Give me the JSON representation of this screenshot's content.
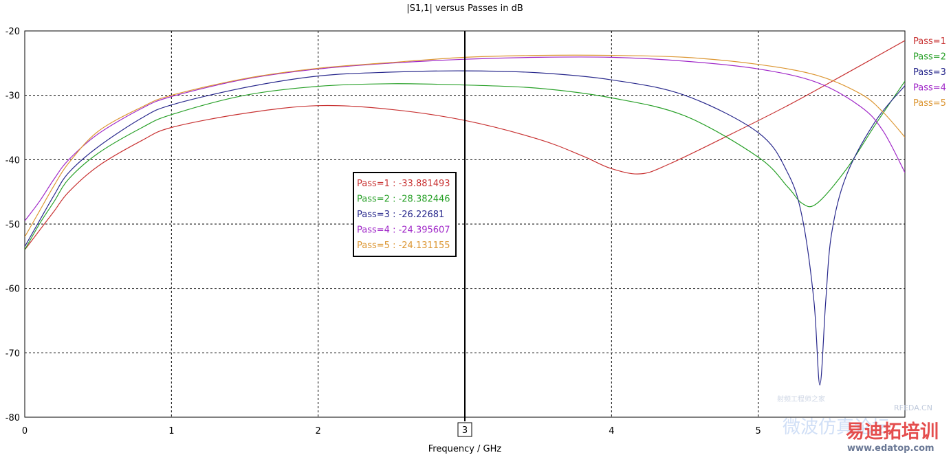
{
  "chart_data": {
    "type": "line",
    "title": "|S1,1| versus Passes in dB",
    "xlabel": "Frequency / GHz",
    "ylabel": "",
    "xlim": [
      0,
      6
    ],
    "ylim": [
      -80,
      -20
    ],
    "x_ticks": [
      "0",
      "1",
      "2",
      "3",
      "4",
      "5"
    ],
    "y_ticks": [
      "-20",
      "-30",
      "-40",
      "-50",
      "-60",
      "-70",
      "-80"
    ],
    "grid": true,
    "legend_position": "right",
    "marker": {
      "x": 3,
      "label": "3"
    },
    "marker_readout": [
      {
        "text": "Pass=1 : -33.881493"
      },
      {
        "text": "Pass=2 : -28.382446"
      },
      {
        "text": "Pass=3 : -26.22681"
      },
      {
        "text": "Pass=4 : -24.395607"
      },
      {
        "text": "Pass=5 : -24.131155"
      }
    ],
    "series": [
      {
        "name": "Pass=1",
        "color": "#c83232",
        "x": [
          0,
          0.1,
          0.2,
          0.3,
          0.5,
          0.8,
          1.0,
          1.5,
          2.0,
          2.5,
          3.0,
          3.5,
          3.8,
          4.0,
          4.2,
          4.4,
          4.8,
          5.2,
          5.6,
          6.0
        ],
        "y": [
          -54,
          -51,
          -48,
          -45,
          -41,
          -37,
          -35,
          -32.8,
          -31.6,
          -32.2,
          -33.9,
          -36.8,
          -39.4,
          -41.4,
          -42.2,
          -40.6,
          -36.2,
          -31.6,
          -26.6,
          -21.5
        ]
      },
      {
        "name": "Pass=2",
        "color": "#28a028",
        "x": [
          0,
          0.1,
          0.2,
          0.3,
          0.5,
          0.8,
          1.0,
          1.5,
          2.0,
          2.5,
          3.0,
          3.5,
          4.0,
          4.5,
          5.0,
          5.2,
          5.3,
          5.4,
          5.6,
          5.8,
          6.0
        ],
        "y": [
          -54,
          -50,
          -46.5,
          -43,
          -39,
          -35,
          -33,
          -30,
          -28.6,
          -28.2,
          -28.4,
          -28.9,
          -30.4,
          -33.2,
          -39.6,
          -44.2,
          -46.8,
          -46.8,
          -41.5,
          -34.5,
          -27.8
        ]
      },
      {
        "name": "Pass=3",
        "color": "#28288c",
        "x": [
          0,
          0.1,
          0.2,
          0.3,
          0.5,
          0.8,
          1.0,
          1.5,
          2.0,
          2.5,
          3.0,
          3.5,
          4.0,
          4.5,
          5.0,
          5.2,
          5.3,
          5.38,
          5.42,
          5.46,
          5.5,
          5.6,
          5.8,
          6.0
        ],
        "y": [
          -53.5,
          -49.5,
          -45.5,
          -42,
          -38,
          -33.5,
          -31.5,
          -28.8,
          -27,
          -26.4,
          -26.2,
          -26.5,
          -27.6,
          -30,
          -35.8,
          -42,
          -49,
          -62,
          -75,
          -62,
          -51.5,
          -42.5,
          -34,
          -28.5
        ]
      },
      {
        "name": "Pass=4",
        "color": "#a028c8",
        "x": [
          0,
          0.1,
          0.2,
          0.3,
          0.5,
          0.8,
          1.0,
          1.5,
          2.0,
          2.5,
          3.0,
          3.5,
          4.0,
          4.5,
          5.0,
          5.4,
          5.7,
          5.85,
          6.0
        ],
        "y": [
          -49.5,
          -46.5,
          -43,
          -40,
          -36,
          -32,
          -30.2,
          -27.5,
          -25.9,
          -25,
          -24.4,
          -24.1,
          -24.1,
          -24.7,
          -25.9,
          -28,
          -31.8,
          -35.5,
          -42
        ]
      },
      {
        "name": "Pass=5",
        "color": "#dc9632",
        "x": [
          0,
          0.1,
          0.2,
          0.3,
          0.5,
          0.8,
          1.0,
          1.5,
          2.0,
          2.5,
          3.0,
          3.5,
          4.0,
          4.5,
          5.0,
          5.4,
          5.7,
          5.85,
          6.0
        ],
        "y": [
          -52,
          -48,
          -44,
          -40.5,
          -35.6,
          -31.8,
          -30,
          -27.4,
          -25.8,
          -24.9,
          -24.1,
          -23.8,
          -23.8,
          -24.1,
          -25.2,
          -26.9,
          -29.8,
          -32.6,
          -36.5
        ]
      }
    ]
  },
  "watermark": {
    "brand": "RFEDA.CN",
    "cn_text": "微波仿真论坛",
    "logo": "易迪拓培训",
    "url": "www.edatop.com",
    "small": "射频工程师之家"
  }
}
